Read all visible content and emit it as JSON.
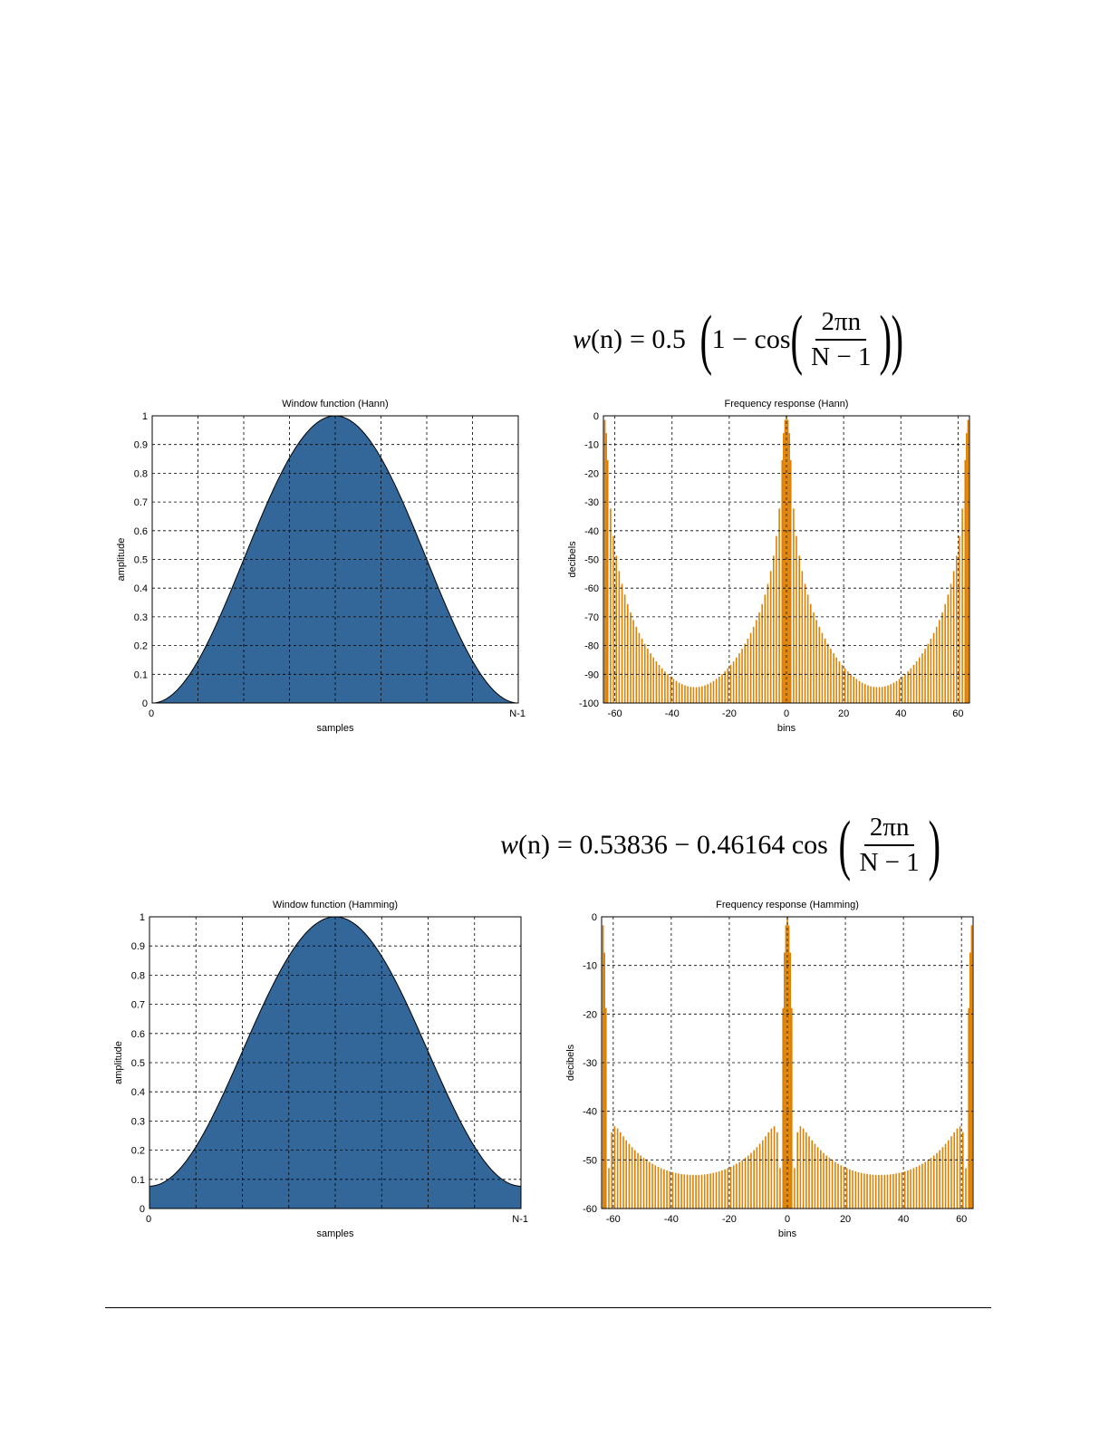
{
  "formulas": {
    "hann": {
      "lhs_w": "w",
      "lhs_n": "(n)",
      "eq": "= 0.5",
      "one_minus": "1 − cos",
      "num": "2πn",
      "den": "N − 1"
    },
    "hamming": {
      "lhs_w": "w",
      "lhs_n": "(n)",
      "eq": "= 0.53836 − 0.46164 cos",
      "num": "2πn",
      "den": "N − 1"
    }
  },
  "colors": {
    "window": "#336699",
    "freq": "#e08000",
    "grid": "#000000"
  },
  "chart_data": [
    {
      "id": "c1",
      "type": "area",
      "kind": "window",
      "title": "Window function (Hann)",
      "xlabel": "samples",
      "ylabel": "amplitude",
      "x_ticks": [
        "0",
        "N-1"
      ],
      "y_ticks": [
        "0",
        "0.1",
        "0.2",
        "0.3",
        "0.4",
        "0.5",
        "0.6",
        "0.7",
        "0.8",
        "0.9",
        "1"
      ],
      "ylim": [
        0,
        1
      ],
      "x_domain": [
        0,
        1
      ],
      "a0": 0.5,
      "a1": 0.5,
      "grid": true
    },
    {
      "id": "c2",
      "type": "bar",
      "kind": "freq",
      "title": "Frequency response (Hann)",
      "xlabel": "bins",
      "ylabel": "decibels",
      "x_ticks": [
        "-60",
        "-40",
        "-20",
        "0",
        "20",
        "40",
        "60"
      ],
      "y_ticks": [
        "-100",
        "-90",
        "-80",
        "-70",
        "-60",
        "-50",
        "-40",
        "-30",
        "-20",
        "-10",
        "0"
      ],
      "xlim": [
        -64,
        64
      ],
      "ylim": [
        -100,
        0
      ],
      "a0": 0.5,
      "a1": 0.5,
      "grid": true
    },
    {
      "id": "c3",
      "type": "area",
      "kind": "window",
      "title": "Window function (Hamming)",
      "xlabel": "samples",
      "ylabel": "amplitude",
      "x_ticks": [
        "0",
        "N-1"
      ],
      "y_ticks": [
        "0",
        "0.1",
        "0.2",
        "0.3",
        "0.4",
        "0.5",
        "0.6",
        "0.7",
        "0.8",
        "0.9",
        "1"
      ],
      "ylim": [
        0,
        1
      ],
      "x_domain": [
        0,
        1
      ],
      "a0": 0.53836,
      "a1": 0.46164,
      "grid": true
    },
    {
      "id": "c4",
      "type": "bar",
      "kind": "freq",
      "title": "Frequency response (Hamming)",
      "xlabel": "bins",
      "ylabel": "decibels",
      "x_ticks": [
        "-60",
        "-40",
        "-20",
        "0",
        "20",
        "40",
        "60"
      ],
      "y_ticks": [
        "-60",
        "-50",
        "-40",
        "-30",
        "-20",
        "-10",
        "0"
      ],
      "xlim": [
        -64,
        64
      ],
      "ylim": [
        -60,
        0
      ],
      "a0": 0.53836,
      "a1": 0.46164,
      "grid": true
    }
  ]
}
